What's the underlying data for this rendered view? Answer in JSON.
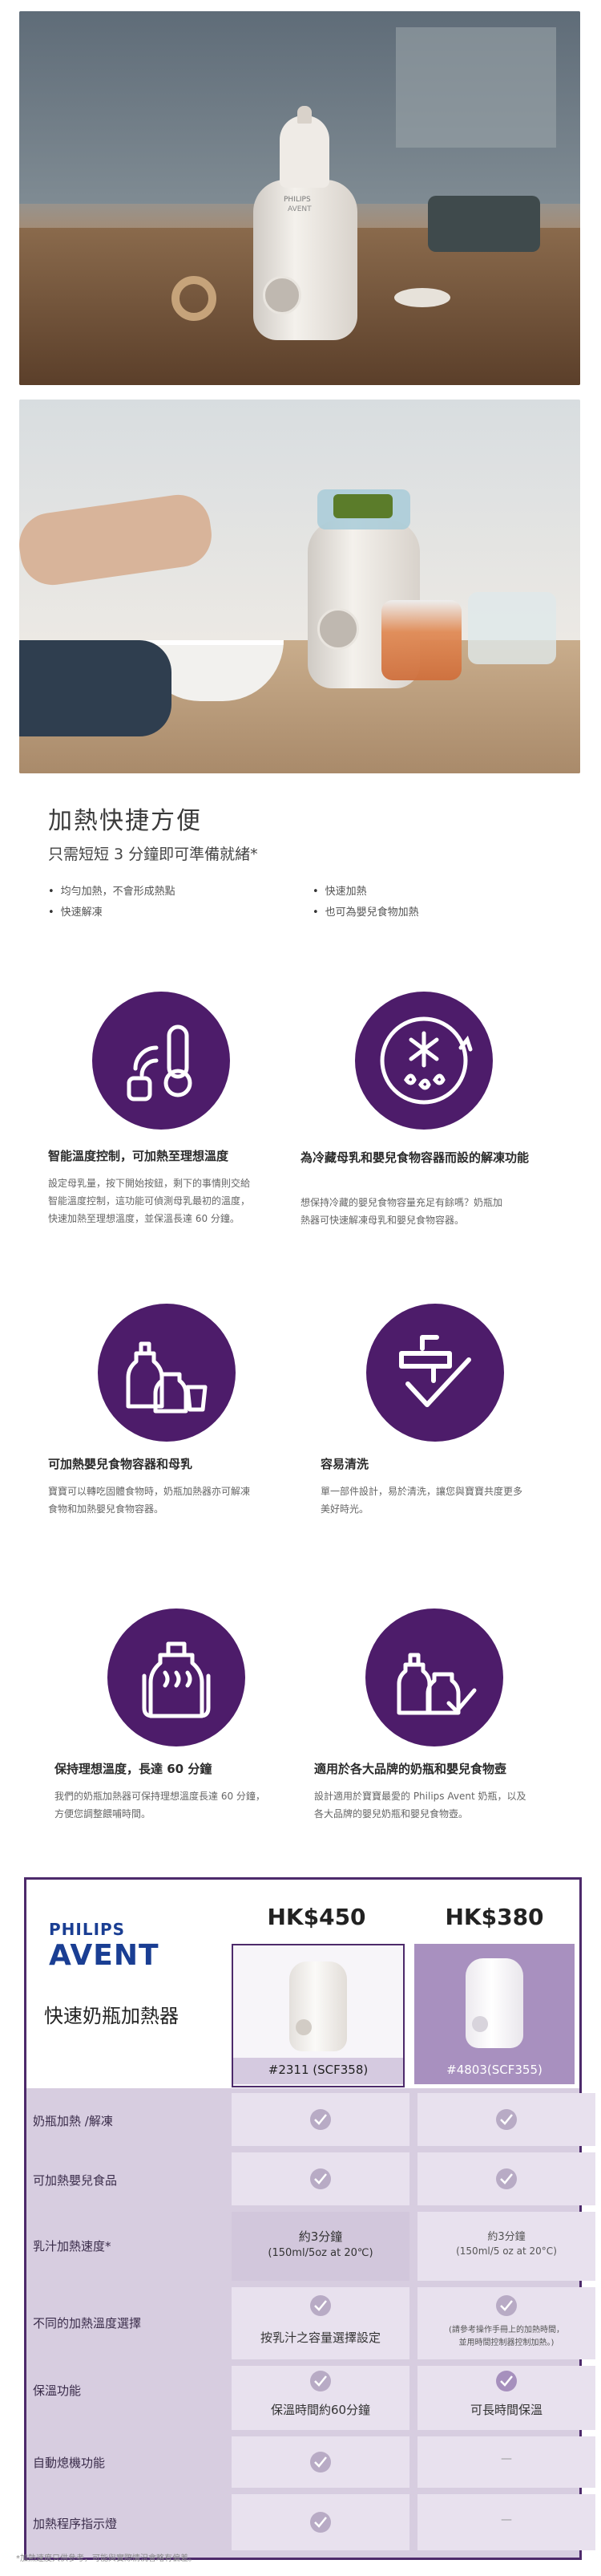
{
  "photos": {
    "product_brand": "PHILIPS",
    "product_sub": "AVENT"
  },
  "intro": {
    "title": "加熱快捷方便",
    "subtitle": "只需短短 3 分鐘即可準備就緒*",
    "bullets": [
      "均勻加熱，不會形成熱點",
      "快速加熱",
      "快速解凍",
      "也可為嬰兒食物加熱"
    ]
  },
  "features": [
    {
      "title": "智能溫度控制，可加熱至理想溫度",
      "desc": [
        "設定母乳量，按下開始按鈕，剩下的事情則交給",
        "智能溫度控制，這功能可偵測母乳最初的溫度，",
        "快速加熱至理想溫度，並保溫長達 60 分鐘。"
      ],
      "icon": "thermometer-icon"
    },
    {
      "title": "為冷藏母乳和嬰兒食物容器而設的解凍功能",
      "desc": [
        "想保持冷藏的嬰兒食物容量充足有餘嗎？奶瓶加",
        "熱器可快速解凍母乳和嬰兒食物容器。"
      ],
      "icon": "defrost-icon"
    },
    {
      "title": "可加熱嬰兒食物容器和母乳",
      "desc": [
        "寶寶可以轉吃固體食物時，奶瓶加熱器亦可解凍",
        "食物和加熱嬰兒食物容器。"
      ],
      "icon": "bottles-icon"
    },
    {
      "title": "容易清洗",
      "desc": [
        "單一部件設計，易於清洗，讓您與寶寶共度更多",
        "美好時光。"
      ],
      "icon": "tap-check-icon"
    },
    {
      "title": "保持理想溫度，長達 60 分鐘",
      "desc": [
        "我們的奶瓶加熱器可保持理想溫度長達 60 分鐘，",
        "方便您調整餵哺時間。"
      ],
      "icon": "warm-bottle-icon"
    },
    {
      "title": "適用於各大品牌的奶瓶和嬰兒食物壺",
      "desc": [
        "設計適用於寶寶最愛的 Philips Avent 奶瓶，以及",
        "各大品牌的嬰兒奶瓶和嬰兒食物壺。"
      ],
      "icon": "bottle-check-icon"
    }
  ],
  "comparison": {
    "brand_top": "PHILIPS",
    "brand_bottom": "AVENT",
    "product_name": "快速奶瓶加熱器",
    "products": [
      {
        "price": "HK$450",
        "model": "#2311 (SCF358)"
      },
      {
        "price": "HK$380",
        "model": "#4803(SCF355)"
      }
    ],
    "rows": [
      {
        "label": "奶瓶加熱 /解凍",
        "a": "",
        "b": ""
      },
      {
        "label": "可加熱嬰兒食品",
        "a": "",
        "b": ""
      },
      {
        "label": "乳汁加熱速度*",
        "a": "約3分鐘",
        "a2": "(150ml/5oz at 20℃)",
        "b": "約3分鐘",
        "b2": "(150ml/5 oz at 20°C)"
      },
      {
        "label": "不同的加熱溫度選擇",
        "a": "按乳汁之容量選擇設定",
        "b": "(請參考操作手冊上的加熱時間，",
        "b2": "並用時間控制器控制加熱。)"
      },
      {
        "label": "保溫功能",
        "a": "保溫時間約60分鐘",
        "b": "可長時間保溫"
      },
      {
        "label": "自動熄機功能",
        "a": "",
        "b": "—"
      },
      {
        "label": "加熱程序指示燈",
        "a": "",
        "b": "—"
      }
    ]
  },
  "footnote": "*加熱速度只供參考，可能與實際情況會略有偏差。",
  "colors": {
    "accent": "#4d1c6a",
    "table_bg": "#d7cde0",
    "cell_bg": "#e8e1ee"
  }
}
